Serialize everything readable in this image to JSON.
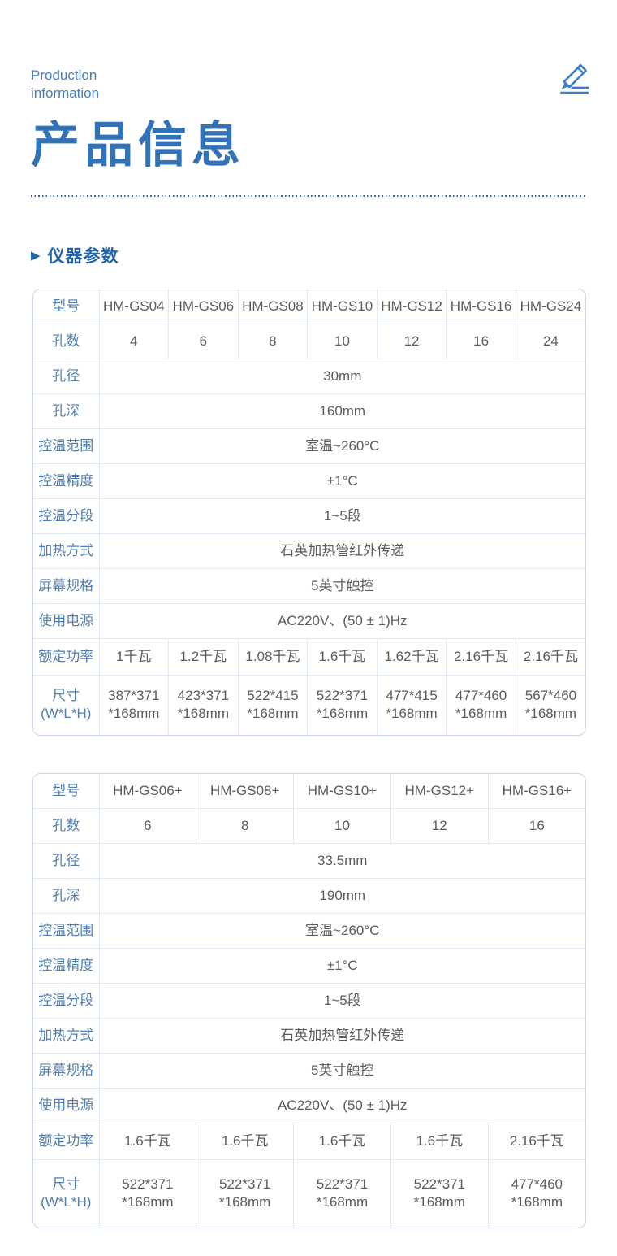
{
  "header": {
    "eyebrow": "Production\ninformation",
    "title": "产品信息",
    "edit_icon": "pencil-edit-icon"
  },
  "section": {
    "arrow_glyph": "▶",
    "title": "仪器参数"
  },
  "colors": {
    "accent_blue": "#3273b8",
    "eyebrow_blue": "#4181c3",
    "section_blue": "#2264a8",
    "label_blue": "#527fae",
    "value_gray": "#5c5c5c",
    "border_outer": "#c9d7e6",
    "border_inner": "#dfe8f2",
    "icon_blue": "#3d7ec4",
    "dotted_rule_blue": "#2e63a8"
  },
  "tables": [
    {
      "name": "spec-table-standard",
      "label_col_width": 81,
      "rows": [
        {
          "key": "model",
          "label": "型号",
          "values": [
            "HM-GS04",
            "HM-GS06",
            "HM-GS08",
            "HM-GS10",
            "HM-GS12",
            "HM-GS16",
            "HM-GS24"
          ]
        },
        {
          "key": "hole-count",
          "label": "孔数",
          "values": [
            "4",
            "6",
            "8",
            "10",
            "12",
            "16",
            "24"
          ]
        },
        {
          "key": "hole-diameter",
          "label": "孔径",
          "merged": "30mm"
        },
        {
          "key": "hole-depth",
          "label": "孔深",
          "merged": "160mm"
        },
        {
          "key": "temp-range",
          "label": "控温范围",
          "merged": "室温~260°C"
        },
        {
          "key": "temp-accuracy",
          "label": "控温精度",
          "merged": "±1°C"
        },
        {
          "key": "temp-segments",
          "label": "控温分段",
          "merged": "1~5段"
        },
        {
          "key": "heating-method",
          "label": "加热方式",
          "merged": "石英加热管红外传递"
        },
        {
          "key": "screen-spec",
          "label": "屏幕规格",
          "merged": "5英寸触控"
        },
        {
          "key": "power-supply",
          "label": "使用电源",
          "merged": "AC220V、(50 ± 1)Hz"
        },
        {
          "key": "rated-power",
          "label": "额定功率",
          "values": [
            "1千瓦",
            "1.2千瓦",
            "1.08千瓦",
            "1.6千瓦",
            "1.62千瓦",
            "2.16千瓦",
            "2.16千瓦"
          ]
        },
        {
          "key": "dimensions",
          "label": "尺寸\n(W*L*H)",
          "values": [
            "387*371\n*168mm",
            "423*371\n*168mm",
            "522*415\n*168mm",
            "522*371\n*168mm",
            "477*415\n*168mm",
            "477*460\n*168mm",
            "567*460\n*168mm"
          ]
        }
      ]
    },
    {
      "name": "spec-table-plus",
      "label_col_width": 81,
      "rows": [
        {
          "key": "model",
          "label": "型号",
          "values": [
            "HM-GS06+",
            "HM-GS08+",
            "HM-GS10+",
            "HM-GS12+",
            "HM-GS16+"
          ]
        },
        {
          "key": "hole-count",
          "label": "孔数",
          "values": [
            "6",
            "8",
            "10",
            "12",
            "16"
          ]
        },
        {
          "key": "hole-diameter",
          "label": "孔径",
          "merged": "33.5mm"
        },
        {
          "key": "hole-depth",
          "label": "孔深",
          "merged": "190mm"
        },
        {
          "key": "temp-range",
          "label": "控温范围",
          "merged": "室温~260°C"
        },
        {
          "key": "temp-accuracy",
          "label": "控温精度",
          "merged": "±1°C"
        },
        {
          "key": "temp-segments",
          "label": "控温分段",
          "merged": "1~5段"
        },
        {
          "key": "heating-method",
          "label": "加热方式",
          "merged": "石英加热管红外传递"
        },
        {
          "key": "screen-spec",
          "label": "屏幕规格",
          "merged": "5英寸触控"
        },
        {
          "key": "power-supply",
          "label": "使用电源",
          "merged": "AC220V、(50 ± 1)Hz"
        },
        {
          "key": "rated-power",
          "label": "额定功率",
          "values": [
            "1.6千瓦",
            "1.6千瓦",
            "1.6千瓦",
            "1.6千瓦",
            "2.16千瓦"
          ]
        },
        {
          "key": "dimensions",
          "label": "尺寸\n(W*L*H)",
          "values": [
            "522*371\n*168mm",
            "522*371\n*168mm",
            "522*371\n*168mm",
            "522*371\n*168mm",
            "477*460\n*168mm"
          ]
        }
      ]
    }
  ]
}
